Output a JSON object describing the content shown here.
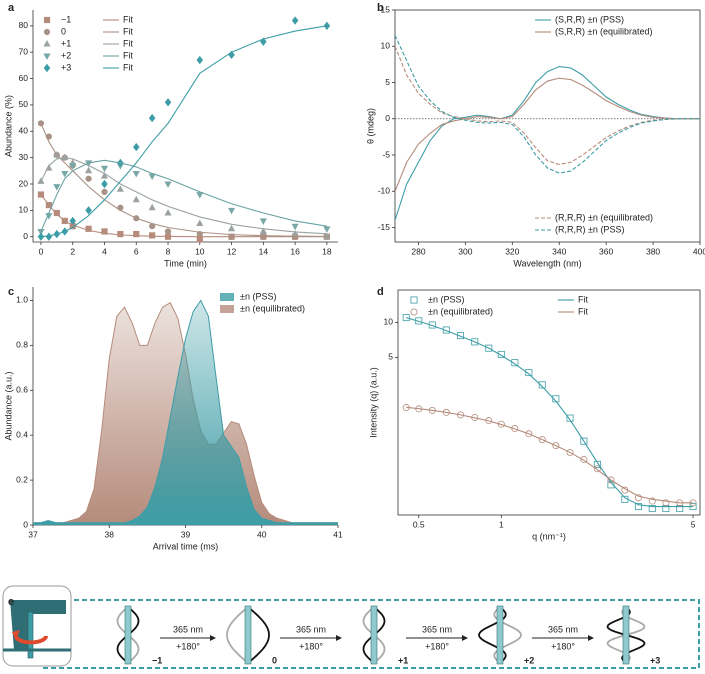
{
  "chart_data": [
    {
      "type": "scatter",
      "label": "a",
      "xlabel": "Time (min)",
      "ylabel": "Abundance (%)",
      "legend": "upper left",
      "x": [
        0,
        0.5,
        1,
        1.5,
        2,
        3,
        4,
        5,
        6,
        7,
        8,
        10,
        12,
        14,
        16,
        18
      ],
      "xlim": [
        -0.5,
        18.7
      ],
      "xticks": [
        0,
        2,
        4,
        6,
        8,
        10,
        12,
        14,
        16,
        18
      ],
      "ylim": [
        -2,
        86
      ],
      "yticks": [
        0,
        10,
        20,
        30,
        40,
        50,
        60,
        70,
        80
      ],
      "series": [
        {
          "name": "−1",
          "marker": "square",
          "color": "#b58b7b",
          "values": [
            16,
            12,
            9,
            6,
            4,
            3,
            2,
            1,
            1,
            0.5,
            0,
            -1,
            0,
            0,
            0,
            0
          ]
        },
        {
          "name": "0",
          "marker": "circle",
          "color": "#a99287",
          "values": [
            43,
            38,
            31,
            30,
            27,
            22,
            17,
            11,
            7,
            4,
            2,
            1,
            0,
            0,
            0,
            0
          ]
        },
        {
          "name": "+1",
          "marker": "triangle-up",
          "color": "#9aa3a1",
          "values": [
            21,
            26,
            31,
            30,
            28,
            25,
            23,
            18,
            14,
            11,
            9,
            5,
            3,
            2,
            1,
            0
          ]
        },
        {
          "name": "+2",
          "marker": "triangle-down",
          "color": "#78a7a7",
          "values": [
            2,
            8,
            19,
            24,
            27,
            28,
            26,
            27,
            24,
            23,
            20,
            16,
            10,
            6,
            4,
            3
          ]
        },
        {
          "name": "+3",
          "marker": "diamond",
          "color": "#3d9da6",
          "values": [
            0,
            0,
            1,
            2,
            6,
            10,
            20,
            28,
            34,
            45,
            51,
            67,
            69,
            74,
            82,
            80
          ]
        },
        {
          "name": "Fit",
          "color": "#b58b7b",
          "values": [
            16,
            12,
            8.5,
            6,
            4.4,
            2.4,
            1.3,
            0.7,
            0.4,
            0.2,
            0.1,
            0,
            0,
            0,
            0,
            0
          ]
        },
        {
          "name": "Fit",
          "color": "#a99287",
          "values": [
            43,
            36,
            31,
            28,
            25,
            19,
            14,
            10,
            7,
            5,
            3.5,
            1.7,
            0.8,
            0.4,
            0.2,
            0.1
          ]
        },
        {
          "name": "Fit",
          "color": "#9aa3a1",
          "values": [
            21,
            27,
            29.5,
            30,
            29.5,
            27,
            24,
            20,
            17,
            14,
            11.5,
            7.5,
            4.7,
            3,
            1.8,
            1.1
          ]
        },
        {
          "name": "Fit",
          "color": "#6aa3a3",
          "values": [
            2,
            9,
            16,
            22,
            25,
            28,
            29,
            28,
            26.5,
            24,
            22,
            17,
            12.5,
            9,
            6,
            4
          ]
        },
        {
          "name": "Fit",
          "color": "#3d9da6",
          "values": [
            0,
            0.3,
            1,
            2,
            3.5,
            8,
            14,
            21,
            28,
            36,
            43,
            62,
            70,
            75,
            78,
            80
          ]
        }
      ]
    },
    {
      "type": "line",
      "label": "b",
      "xlabel": "Wavelength (nm)",
      "ylabel": "θ (mdeg)",
      "x": [
        270,
        275,
        280,
        285,
        290,
        295,
        300,
        305,
        310,
        315,
        320,
        325,
        330,
        335,
        340,
        345,
        350,
        355,
        360,
        365,
        370,
        375,
        380,
        385,
        390,
        395,
        400
      ],
      "xlim": [
        270,
        400
      ],
      "xticks": [
        280,
        300,
        320,
        340,
        360,
        380,
        400
      ],
      "ylim": [
        -17,
        15
      ],
      "yticks": [
        -15,
        -10,
        -5,
        0,
        5,
        10,
        15
      ],
      "series": [
        {
          "name": "(S,R,R) ±n (PSS)",
          "color": "#3d9da6",
          "legend": "upper right",
          "values": [
            -14,
            -9,
            -6,
            -3,
            -1,
            0,
            0.2,
            0.5,
            0.3,
            0,
            0.5,
            2.5,
            5,
            6.5,
            7.2,
            7,
            6,
            4.5,
            3,
            2,
            1.2,
            0.6,
            0.3,
            0.1,
            0,
            0,
            0
          ]
        },
        {
          "name": "(S,R,R) ±n (equilibrated)",
          "color": "#b58b7b",
          "legend": "upper right",
          "values": [
            -10,
            -6,
            -3.5,
            -2,
            -0.8,
            -0.3,
            0,
            0.3,
            0.2,
            0,
            0.3,
            2,
            4,
            5.2,
            5.6,
            5.4,
            4.6,
            3.6,
            2.5,
            1.7,
            1,
            0.5,
            0.2,
            0.1,
            0,
            0,
            0
          ]
        },
        {
          "name": "(R,R,R) ±n (equilibrated)",
          "color": "#b58b7b",
          "dash": true,
          "legend": "lower right",
          "values": [
            10,
            6,
            3.5,
            2,
            0.8,
            0.3,
            0,
            -0.3,
            -0.4,
            -0.3,
            -0.5,
            -2,
            -4,
            -5.8,
            -6.3,
            -6,
            -5,
            -3.8,
            -2.6,
            -1.7,
            -1,
            -0.5,
            -0.2,
            -0.1,
            0,
            0,
            0
          ]
        },
        {
          "name": "(R,R,R) ±n (PSS)",
          "color": "#3d9da6",
          "dash": true,
          "legend": "lower right",
          "values": [
            11.5,
            8,
            4.5,
            2.5,
            1,
            0.2,
            -0.2,
            -0.5,
            -0.6,
            -0.5,
            -0.8,
            -2.5,
            -5,
            -6.8,
            -7.5,
            -7.2,
            -6,
            -4.5,
            -3,
            -2,
            -1.2,
            -0.6,
            -0.3,
            -0.1,
            0,
            0,
            0
          ]
        }
      ]
    },
    {
      "type": "area",
      "label": "c",
      "xlabel": "Arrival time (ms)",
      "ylabel": "Abundance (a.u.)",
      "legend": "upper right",
      "x": [
        37.0,
        37.1,
        37.2,
        37.3,
        37.4,
        37.5,
        37.6,
        37.7,
        37.8,
        37.9,
        38.0,
        38.1,
        38.2,
        38.3,
        38.4,
        38.5,
        38.6,
        38.7,
        38.8,
        38.9,
        39.0,
        39.1,
        39.2,
        39.3,
        39.4,
        39.5,
        39.6,
        39.7,
        39.8,
        39.9,
        40.0,
        40.1,
        40.2,
        40.3,
        40.4,
        40.5,
        40.6,
        40.7,
        40.8,
        40.9,
        41.0
      ],
      "xlim": [
        37,
        41
      ],
      "xticks": [
        37,
        38,
        39,
        40,
        41
      ],
      "ylim": [
        0,
        1.06
      ],
      "yticks": [
        0,
        0.2,
        0.4,
        0.6,
        0.8,
        {
          "value": 1,
          "label": "1.0"
        }
      ],
      "series": [
        {
          "name": "±n (PSS)",
          "color": "#3d9da6",
          "values": [
            0.01,
            0.01,
            0.02,
            0.01,
            0.01,
            0.01,
            0.01,
            0.01,
            0.01,
            0.01,
            0.01,
            0.01,
            0.01,
            0.02,
            0.04,
            0.08,
            0.17,
            0.3,
            0.48,
            0.66,
            0.83,
            0.95,
            1.0,
            0.93,
            0.66,
            0.4,
            0.35,
            0.3,
            0.17,
            0.07,
            0.03,
            0.02,
            0.01,
            0.01,
            0.01,
            0.01,
            0.01,
            0.01,
            0.01,
            0.01,
            0.01
          ]
        },
        {
          "name": "±n (equilibrated)",
          "color": "#b58b7b",
          "values": [
            0.01,
            0.01,
            0.01,
            0.01,
            0.01,
            0.02,
            0.03,
            0.06,
            0.16,
            0.42,
            0.74,
            0.93,
            0.97,
            0.9,
            0.8,
            0.8,
            0.9,
            0.97,
            0.99,
            0.92,
            0.76,
            0.56,
            0.42,
            0.36,
            0.36,
            0.41,
            0.46,
            0.45,
            0.36,
            0.22,
            0.1,
            0.05,
            0.03,
            0.02,
            0.01,
            0.01,
            0.01,
            0.01,
            0.01,
            0.01,
            0.01
          ]
        }
      ]
    },
    {
      "type": "scatter",
      "label": "d",
      "xlabel": "q (nm⁻¹)",
      "ylabel": "Intensity (q) (a.u.)",
      "legend": "upper left",
      "xscale": "log",
      "yscale": "log",
      "hollow_markers": true,
      "x": [
        0.45,
        0.5,
        0.56,
        0.63,
        0.71,
        0.8,
        0.9,
        1.0,
        1.12,
        1.26,
        1.41,
        1.58,
        1.78,
        2.0,
        2.24,
        2.51,
        2.82,
        3.16,
        3.55,
        3.98,
        4.47,
        5.0
      ],
      "xlim": [
        0.42,
        5.3
      ],
      "xticks": [
        0.5,
        1,
        5
      ],
      "ylim": [
        0.22,
        19
      ],
      "yticks": [
        5,
        10
      ],
      "series": [
        {
          "name": "±n (PSS)",
          "marker": "square",
          "color": "#3d9da6",
          "values": [
            11,
            10.3,
            9.5,
            8.6,
            7.7,
            6.8,
            6.0,
            5.3,
            4.5,
            3.7,
            2.9,
            2.2,
            1.5,
            0.95,
            0.6,
            0.4,
            0.3,
            0.26,
            0.25,
            0.25,
            0.25,
            0.26
          ]
        },
        {
          "name": "±n (equilibrated)",
          "marker": "circle",
          "color": "#b58b7b",
          "values": [
            1.85,
            1.8,
            1.75,
            1.68,
            1.6,
            1.52,
            1.43,
            1.33,
            1.22,
            1.1,
            0.98,
            0.87,
            0.76,
            0.66,
            0.55,
            0.44,
            0.36,
            0.31,
            0.29,
            0.28,
            0.28,
            0.28
          ]
        },
        {
          "name": "Fit",
          "color": "#3d9da6",
          "values": [
            11,
            10.2,
            9.4,
            8.5,
            7.6,
            6.8,
            6.0,
            5.2,
            4.4,
            3.6,
            2.8,
            2.1,
            1.45,
            0.95,
            0.62,
            0.42,
            0.31,
            0.27,
            0.26,
            0.26,
            0.26,
            0.26
          ]
        },
        {
          "name": "Fit",
          "color": "#b58b7b",
          "values": [
            1.86,
            1.81,
            1.75,
            1.68,
            1.6,
            1.51,
            1.42,
            1.32,
            1.21,
            1.1,
            0.98,
            0.87,
            0.76,
            0.65,
            0.54,
            0.44,
            0.37,
            0.32,
            0.3,
            0.29,
            0.28,
            0.28
          ]
        }
      ]
    }
  ],
  "diagram": {
    "label": "e",
    "states": [
      "−1",
      "0",
      "+1",
      "+2",
      "+3"
    ],
    "steps": [
      {
        "wavelength": "365 nm",
        "rotation": "+180°"
      },
      {
        "wavelength": "365 nm",
        "rotation": "+180°"
      },
      {
        "wavelength": "365 nm",
        "rotation": "+180°"
      },
      {
        "wavelength": "365 nm",
        "rotation": "+180°"
      }
    ]
  }
}
